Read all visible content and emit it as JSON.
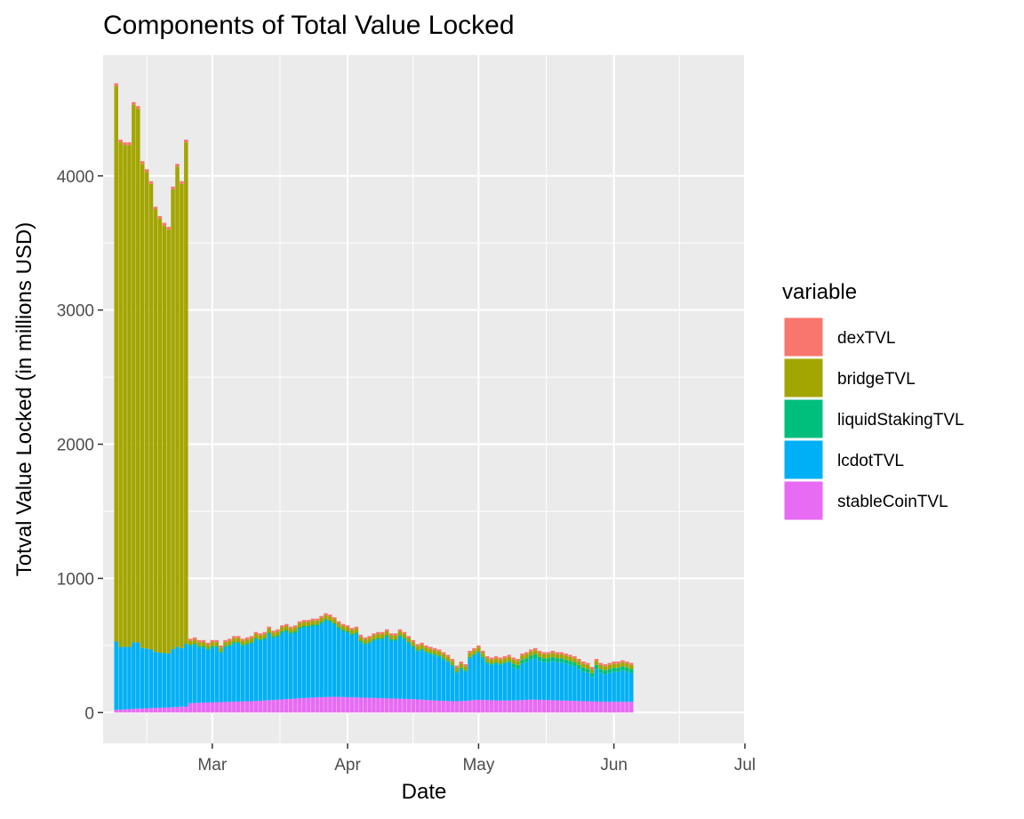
{
  "chart_data": {
    "type": "bar",
    "stacked": true,
    "title": "Components of Total Value Locked",
    "xlabel": "Date",
    "ylabel": "Totval Value Locked (in millions USD)",
    "ylim": [
      -230,
      4900
    ],
    "grid": true,
    "legend_position": "right",
    "legend_title": "variable",
    "x_range": [
      "2022-02-04",
      "2022-07-01"
    ],
    "x_ticks": [
      {
        "date": "2022-03-01",
        "label": "Mar"
      },
      {
        "date": "2022-04-01",
        "label": "Apr"
      },
      {
        "date": "2022-05-01",
        "label": "May"
      },
      {
        "date": "2022-06-01",
        "label": "Jun"
      },
      {
        "date": "2022-07-01",
        "label": "Jul"
      }
    ],
    "y_ticks": [
      0,
      1000,
      2000,
      3000,
      4000
    ],
    "first_date": "2022-02-07",
    "series": [
      {
        "name": "dexTVL",
        "color": "#F8766D"
      },
      {
        "name": "bridgeTVL",
        "color": "#A3A500"
      },
      {
        "name": "liquidStakingTVL",
        "color": "#00BF7D"
      },
      {
        "name": "lcdotTVL",
        "color": "#00B0F6"
      },
      {
        "name": "stableCoinTVL",
        "color": "#E76BF3"
      }
    ],
    "totals": [
      4690,
      4270,
      4250,
      4250,
      4550,
      4520,
      4110,
      4050,
      3960,
      3770,
      3700,
      3650,
      3620,
      3920,
      4090,
      3960,
      4270,
      550,
      560,
      540,
      540,
      520,
      540,
      540,
      500,
      540,
      550,
      570,
      570,
      550,
      560,
      570,
      600,
      590,
      600,
      640,
      610,
      620,
      650,
      660,
      640,
      650,
      680,
      690,
      690,
      700,
      700,
      720,
      740,
      730,
      710,
      680,
      660,
      650,
      630,
      640,
      580,
      560,
      570,
      590,
      600,
      600,
      620,
      590,
      590,
      620,
      600,
      570,
      540,
      510,
      520,
      500,
      490,
      480,
      470,
      450,
      430,
      400,
      350,
      380,
      360,
      460,
      480,
      500,
      460,
      420,
      410,
      420,
      410,
      420,
      430,
      410,
      400,
      440,
      450,
      470,
      480,
      460,
      450,
      450,
      460,
      450,
      450,
      440,
      430,
      420,
      400,
      380,
      370,
      340,
      400,
      370,
      360,
      370,
      380,
      380,
      390,
      380,
      370
    ],
    "stableCoinTVL": [
      20,
      22,
      24,
      25,
      28,
      30,
      30,
      32,
      34,
      35,
      36,
      38,
      38,
      40,
      42,
      44,
      45,
      70,
      72,
      73,
      74,
      75,
      76,
      77,
      78,
      79,
      80,
      81,
      82,
      83,
      84,
      85,
      86,
      88,
      90,
      92,
      94,
      96,
      98,
      100,
      102,
      104,
      106,
      108,
      110,
      112,
      114,
      115,
      116,
      117,
      118,
      117,
      116,
      115,
      114,
      113,
      112,
      111,
      110,
      109,
      108,
      107,
      106,
      105,
      104,
      103,
      102,
      101,
      100,
      98,
      96,
      94,
      92,
      90,
      88,
      87,
      86,
      85,
      85,
      86,
      87,
      90,
      93,
      95,
      94,
      93,
      92,
      91,
      90,
      89,
      90,
      91,
      92,
      93,
      95,
      97,
      96,
      95,
      94,
      93,
      92,
      91,
      90,
      89,
      88,
      87,
      86,
      85,
      84,
      83,
      82,
      81,
      80,
      80,
      80,
      80,
      80,
      80,
      80
    ],
    "bridge_after_mar": [
      30,
      30,
      30,
      30,
      30,
      30,
      30,
      30,
      30,
      30,
      30,
      30,
      30,
      30,
      30,
      30,
      30,
      30,
      30,
      30,
      30,
      30,
      30,
      30,
      30,
      30,
      30,
      30,
      30,
      30,
      30,
      30,
      30,
      30,
      30,
      30,
      30,
      30,
      30,
      30,
      30,
      30,
      30,
      30,
      30,
      30,
      30,
      30,
      30,
      30,
      30,
      30,
      30,
      30,
      30,
      30,
      30,
      30,
      30,
      30,
      30,
      30,
      30,
      30,
      30,
      30,
      30,
      30,
      30,
      30,
      30,
      30,
      30,
      30,
      30,
      30,
      30,
      30,
      30,
      30,
      30,
      30,
      30,
      30,
      30,
      30,
      30,
      30,
      30,
      30,
      30,
      30,
      30,
      30,
      30,
      30,
      30,
      30,
      30,
      30,
      30,
      30
    ]
  }
}
